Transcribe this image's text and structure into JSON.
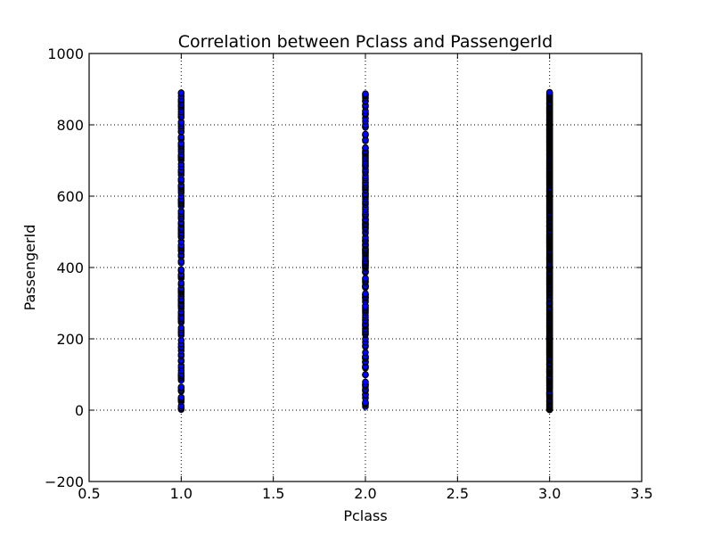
{
  "chart_data": {
    "type": "scatter",
    "title": "Correlation between Pclass and PassengerId",
    "xlabel": "Pclass",
    "ylabel": "PassengerId",
    "xlim": [
      0.5,
      3.5
    ],
    "ylim": [
      -200,
      1000
    ],
    "xticks": [
      "0.5",
      "1.0",
      "1.5",
      "2.0",
      "2.5",
      "3.0",
      "3.5"
    ],
    "xtick_values": [
      0.5,
      1.0,
      1.5,
      2.0,
      2.5,
      3.0,
      3.5
    ],
    "yticks": [
      "−200",
      "0",
      "200",
      "400",
      "600",
      "800",
      "1000"
    ],
    "ytick_values": [
      -200,
      0,
      200,
      400,
      600,
      800,
      1000
    ],
    "grid": true,
    "marker_color": "#0000ff",
    "marker_edge_color": "#000000",
    "series": [
      {
        "x_value": 1,
        "y_values": [
          2,
          4,
          7,
          12,
          24,
          28,
          31,
          32,
          35,
          36,
          53,
          55,
          56,
          62,
          63,
          65,
          84,
          89,
          93,
          97,
          98,
          103,
          111,
          119,
          125,
          137,
          138,
          140,
          152,
          156,
          167,
          175,
          178,
          186,
          196,
          210,
          216,
          219,
          225,
          231,
          246,
          249,
          253,
          257,
          258,
          263,
          264,
          270,
          274,
          276,
          285,
          291,
          292,
          294,
          298,
          300,
          306,
          307,
          308,
          311,
          312,
          319,
          320,
          326,
          330,
          332,
          335,
          337,
          338,
          340,
          342,
          352,
          357,
          370,
          374,
          376,
          378,
          381,
          391,
          392,
          394,
          413,
          418,
          431,
          435,
          436,
          446,
          449,
          454,
          457,
          461,
          463,
          473,
          485,
          488,
          493,
          497,
          499,
          505,
          506,
          510,
          514,
          521,
          524,
          527,
          537,
          540,
          545,
          551,
          557,
          558,
          572,
          578,
          582,
          586,
          588,
          592,
          600,
          610,
          616,
          622,
          626,
          628,
          631,
          642,
          646,
          648,
          660,
          666,
          670,
          673,
          682,
          690,
          701,
          705,
          709,
          711,
          713,
          717,
          725,
          731,
          738,
          742,
          746,
          749,
          760,
          764,
          766,
          780,
          782,
          790,
          797,
          803,
          808,
          821,
          824,
          829,
          836,
          843,
          850,
          854,
          857,
          863,
          868,
          872,
          880,
          888,
          890
        ]
      },
      {
        "x_value": 2,
        "y_values": [
          10,
          16,
          18,
          21,
          22,
          34,
          42,
          44,
          54,
          57,
          59,
          67,
          71,
          73,
          79,
          99,
          100,
          118,
          121,
          123,
          134,
          136,
          145,
          146,
          150,
          151,
          162,
          178,
          182,
          191,
          200,
          212,
          214,
          218,
          221,
          227,
          229,
          235,
          238,
          240,
          243,
          250,
          253,
          260,
          266,
          273,
          278,
          282,
          286,
          289,
          293,
          304,
          309,
          314,
          317,
          318,
          323,
          324,
          327,
          344,
          346,
          348,
          349,
          358,
          362,
          366,
          370,
          386,
          388,
          390,
          398,
          401,
          404,
          406,
          408,
          412,
          414,
          417,
          418,
          419,
          424,
          428,
          433,
          438,
          441,
          443,
          447,
          450,
          451,
          455,
          461,
          463,
          466,
          473,
          475,
          480,
          485,
          496,
          500,
          507,
          511,
          514,
          519,
          521,
          522,
          525,
          530,
          533,
          534,
          536,
          544,
          548,
          550,
          556,
          563,
          569,
          577,
          582,
          585,
          592,
          598,
          600,
          604,
          606,
          608,
          616,
          619,
          624,
          627,
          631,
          636,
          639,
          646,
          651,
          657,
          666,
          670,
          675,
          683,
          685,
          689,
          693,
          698,
          704,
          708,
          713,
          718,
          722,
          724,
          727,
          734,
          736,
          755,
          758,
          771,
          774,
          793,
          795,
          800,
          810,
          818,
          828,
          831,
          833,
          839,
          851,
          855,
          866,
          867,
          875,
          881,
          884,
          887
        ]
      },
      {
        "x_value": 3,
        "y_values": [
          1,
          3,
          5,
          6,
          8,
          9,
          11,
          13,
          14,
          15,
          17,
          19,
          20,
          23,
          25,
          26,
          27,
          29,
          30,
          33,
          37,
          38,
          39,
          40,
          41,
          43,
          45,
          46,
          47,
          48,
          49,
          50,
          51,
          52,
          58,
          60,
          61,
          64,
          66,
          68,
          69,
          70,
          72,
          75,
          76,
          77,
          78,
          80,
          81,
          82,
          83,
          85,
          86,
          87,
          88,
          90,
          91,
          92,
          94,
          95,
          96,
          101,
          102,
          104,
          105,
          106,
          107,
          108,
          109,
          110,
          112,
          113,
          114,
          115,
          116,
          117,
          120,
          122,
          126,
          127,
          128,
          129,
          130,
          131,
          133,
          135,
          139,
          141,
          142,
          143,
          144,
          147,
          148,
          149,
          153,
          154,
          155,
          157,
          158,
          159,
          160,
          161,
          163,
          164,
          165,
          166,
          168,
          169,
          170,
          171,
          172,
          173,
          174,
          176,
          177,
          179,
          180,
          181,
          183,
          184,
          185,
          187,
          188,
          189,
          190,
          192,
          193,
          194,
          195,
          197,
          198,
          199,
          201,
          202,
          203,
          204,
          205,
          206,
          207,
          208,
          209,
          211,
          213,
          215,
          217,
          220,
          222,
          223,
          224,
          226,
          228,
          230,
          232,
          233,
          234,
          236,
          237,
          239,
          241,
          242,
          244,
          245,
          247,
          248,
          251,
          252,
          254,
          255,
          256,
          259,
          261,
          262,
          265,
          267,
          268,
          269,
          271,
          272,
          275,
          277,
          279,
          280,
          281,
          283,
          284,
          287,
          288,
          290,
          295,
          296,
          297,
          299,
          301,
          302,
          303,
          305,
          310,
          313,
          315,
          316,
          321,
          322,
          325,
          328,
          329,
          331,
          333,
          334,
          336,
          339,
          341,
          343,
          345,
          347,
          350,
          351,
          353,
          354,
          355,
          356,
          359,
          360,
          361,
          363,
          364,
          365,
          367,
          368,
          369,
          371,
          372,
          373,
          375,
          377,
          379,
          380,
          382,
          383,
          384,
          385,
          387,
          389,
          393,
          395,
          396,
          397,
          399,
          400,
          402,
          403,
          405,
          407,
          409,
          410,
          411,
          415,
          416,
          420,
          421,
          422,
          423,
          425,
          426,
          427,
          429,
          430,
          432,
          434,
          437,
          439,
          440,
          442,
          444,
          445,
          448,
          452,
          453,
          456,
          458,
          459,
          460,
          462,
          464,
          465,
          467,
          468,
          469,
          470,
          471,
          472,
          474,
          476,
          477,
          478,
          479,
          481,
          482,
          483,
          484,
          486,
          487,
          489,
          490,
          491,
          492,
          494,
          495,
          498,
          501,
          502,
          503,
          504,
          508,
          509,
          512,
          513,
          515,
          516,
          517,
          518,
          520,
          523,
          526,
          528,
          529,
          531,
          532,
          535,
          538,
          539,
          541,
          542,
          543,
          546,
          547,
          549,
          552,
          553,
          554,
          555,
          559,
          560,
          561,
          562,
          564,
          565,
          566,
          567,
          568,
          570,
          571,
          573,
          574,
          575,
          576,
          579,
          580,
          581,
          583,
          584,
          587,
          589,
          590,
          591,
          593,
          594,
          595,
          596,
          597,
          599,
          601,
          602,
          603,
          605,
          607,
          609,
          611,
          612,
          613,
          614,
          615,
          617,
          618,
          620,
          621,
          623,
          625,
          629,
          630,
          632,
          633,
          634,
          635,
          637,
          638,
          640,
          641,
          643,
          644,
          645,
          647,
          649,
          650,
          652,
          653,
          654,
          655,
          656,
          658,
          659,
          661,
          662,
          663,
          664,
          665,
          667,
          668,
          669,
          671,
          672,
          674,
          676,
          677,
          678,
          679,
          680,
          681,
          684,
          686,
          687,
          688,
          691,
          692,
          694,
          695,
          696,
          697,
          699,
          700,
          702,
          703,
          706,
          707,
          710,
          712,
          714,
          715,
          716,
          719,
          720,
          721,
          723,
          726,
          728,
          729,
          730,
          732,
          733,
          735,
          737,
          739,
          740,
          741,
          743,
          744,
          745,
          747,
          748,
          750,
          751,
          752,
          753,
          754,
          756,
          757,
          759,
          761,
          762,
          763,
          765,
          767,
          768,
          769,
          770,
          772,
          773,
          775,
          776,
          777,
          778,
          779,
          781,
          783,
          784,
          785,
          786,
          787,
          788,
          789,
          791,
          792,
          794,
          796,
          798,
          799,
          801,
          802,
          804,
          805,
          806,
          807,
          809,
          811,
          812,
          813,
          814,
          815,
          816,
          817,
          819,
          820,
          822,
          823,
          825,
          826,
          827,
          830,
          832,
          834,
          835,
          837,
          838,
          840,
          841,
          842,
          844,
          845,
          846,
          847,
          848,
          849,
          852,
          853,
          856,
          858,
          859,
          860,
          861,
          862,
          864,
          865,
          869,
          870,
          871,
          873,
          874,
          876,
          877,
          878,
          879,
          882,
          883,
          885,
          886,
          889,
          891
        ]
      }
    ]
  }
}
